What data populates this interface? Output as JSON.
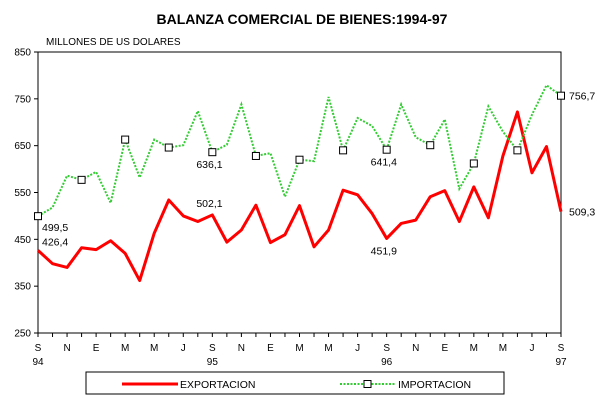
{
  "chart_data": {
    "type": "line",
    "title": "BALANZA COMERCIAL DE BIENES:1994-97",
    "ylabel": "MILLONES DE US DOLARES",
    "ylim": [
      250,
      850
    ],
    "yticks": [
      "250",
      "350",
      "450",
      "550",
      "650",
      "750",
      "850"
    ],
    "xtick_labels": [
      "S",
      "N",
      "E",
      "M",
      "M",
      "J",
      "S",
      "N",
      "E",
      "M",
      "M",
      "J",
      "S",
      "N",
      "E",
      "M",
      "M",
      "J",
      "S"
    ],
    "year_labels": [
      {
        "index": 0,
        "label": "94"
      },
      {
        "index": 6,
        "label": "95"
      },
      {
        "index": 12,
        "label": "96"
      },
      {
        "index": 18,
        "label": "97"
      }
    ],
    "x": [
      "1994-09",
      "1994-10",
      "1994-11",
      "1994-12",
      "1995-01",
      "1995-02",
      "1995-03",
      "1995-04",
      "1995-05",
      "1995-06",
      "1995-07",
      "1995-08",
      "1995-09",
      "1995-10",
      "1995-11",
      "1995-12",
      "1996-01",
      "1996-02",
      "1996-03",
      "1996-04",
      "1996-05",
      "1996-06",
      "1996-07",
      "1996-08",
      "1996-09",
      "1996-10",
      "1996-11",
      "1996-12",
      "1997-01",
      "1997-02",
      "1997-03",
      "1997-04",
      "1997-05",
      "1997-06",
      "1997-07",
      "1997-08",
      "1997-09"
    ],
    "series": [
      {
        "name": "EXPORTACION",
        "color": "#ff0000",
        "values": [
          426.4,
          398,
          390,
          432,
          428,
          447,
          420,
          362,
          463,
          534,
          500,
          488,
          502.1,
          444,
          470,
          523,
          443,
          460,
          522,
          434,
          470,
          555,
          545,
          505,
          451.9,
          484,
          491,
          541,
          554,
          488,
          562,
          496,
          628,
          722,
          592,
          648,
          509.3
        ]
      },
      {
        "name": "IMPORTACION",
        "color": "#33cc33",
        "values": [
          499.5,
          518,
          586,
          577,
          594,
          528,
          663,
          582,
          663,
          646,
          651,
          724,
          636.1,
          652,
          738,
          628,
          634,
          541,
          620,
          617,
          754,
          640,
          709,
          692,
          641.4,
          738,
          668,
          651,
          706,
          558,
          612,
          734,
          680,
          640,
          716,
          779,
          756.7
        ]
      }
    ],
    "annotations": [
      {
        "series": 1,
        "index": 0,
        "text": "499,5",
        "pos": "below-right"
      },
      {
        "series": 0,
        "index": 0,
        "text": "426,4",
        "pos": "above-right"
      },
      {
        "series": 1,
        "index": 12,
        "text": "636,1",
        "pos": "below-left"
      },
      {
        "series": 0,
        "index": 12,
        "text": "502,1",
        "pos": "above-left"
      },
      {
        "series": 1,
        "index": 24,
        "text": "641,4",
        "pos": "below-left"
      },
      {
        "series": 0,
        "index": 24,
        "text": "451,9",
        "pos": "below-left"
      },
      {
        "series": 1,
        "index": 36,
        "text": "756,7",
        "pos": "right"
      },
      {
        "series": 0,
        "index": 36,
        "text": "509,3",
        "pos": "right"
      }
    ],
    "legend_position": "bottom",
    "grid": false
  }
}
